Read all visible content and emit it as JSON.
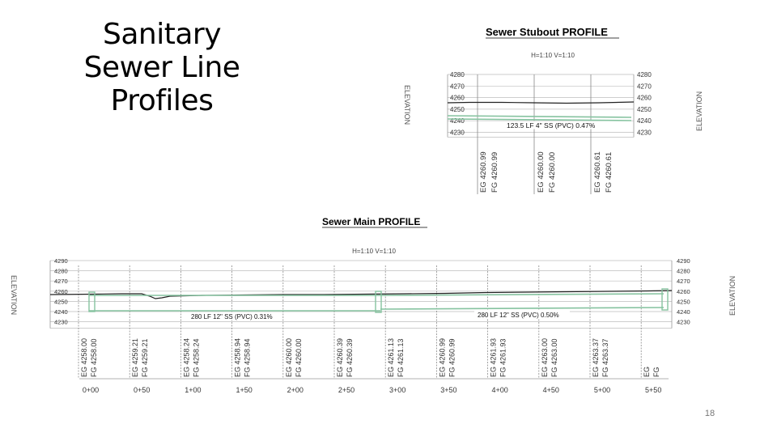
{
  "slide": {
    "title_lines": [
      "Sanitary",
      "Sewer Line",
      "Profiles"
    ],
    "page_number": "18"
  },
  "stubout": {
    "title": "Sewer Stubout PROFILE",
    "scale": "H=1:10  V=1:10",
    "axis_left": "ELEVATION",
    "axis_right": "ELEVATION",
    "elevations": [
      "4280",
      "4270",
      "4260",
      "4250",
      "4240",
      "4230"
    ],
    "pipe_label": "123.5 LF 4\" SS (PVC) 0.47%",
    "station_labels": [
      {
        "eg": "EG 4260.99",
        "fg": "FG 4260.99"
      },
      {
        "eg": "EG 4260.00",
        "fg": "FG 4260.00"
      },
      {
        "eg": "EG 4260.61",
        "fg": "FG 4260.61"
      }
    ]
  },
  "main": {
    "title": "Sewer Main PROFILE",
    "scale": "H=1:10  V=1:10",
    "axis_left": "ELEVATION",
    "axis_right": "ELEVATION",
    "elevations": [
      "4290",
      "4280",
      "4270",
      "4260",
      "4250",
      "4240",
      "4230"
    ],
    "pipe_label_1": "280 LF 12\" SS (PVC) 0.31%",
    "pipe_label_2": "280 LF 12\" SS (PVC) 0.50%",
    "station_labels": [
      {
        "eg": "EG 4258.00",
        "fg": "FG 4258.00"
      },
      {
        "eg": "EG 4259.21",
        "fg": "FG 4259.21"
      },
      {
        "eg": "EG 4258.24",
        "fg": "FG 4258.24"
      },
      {
        "eg": "EG 4258.94",
        "fg": "FG 4258.94"
      },
      {
        "eg": "EG 4260.00",
        "fg": "FG 4260.00"
      },
      {
        "eg": "EG 4260.39",
        "fg": "FG 4260.39"
      },
      {
        "eg": "EG 4261.13",
        "fg": "FG 4261.13"
      },
      {
        "eg": "EG 4260.99",
        "fg": "FG 4260.99"
      },
      {
        "eg": "EG 4261.93",
        "fg": "FG 4261.93"
      },
      {
        "eg": "EG 4263.00",
        "fg": "FG 4263.00"
      },
      {
        "eg": "EG 4263.37",
        "fg": "FG 4263.37"
      },
      {
        "eg": "EG",
        "fg": "FG"
      }
    ],
    "stations": [
      "0+00",
      "0+50",
      "1+00",
      "1+50",
      "2+00",
      "2+50",
      "3+00",
      "3+50",
      "4+00",
      "4+50",
      "5+00",
      "5+50"
    ]
  }
}
